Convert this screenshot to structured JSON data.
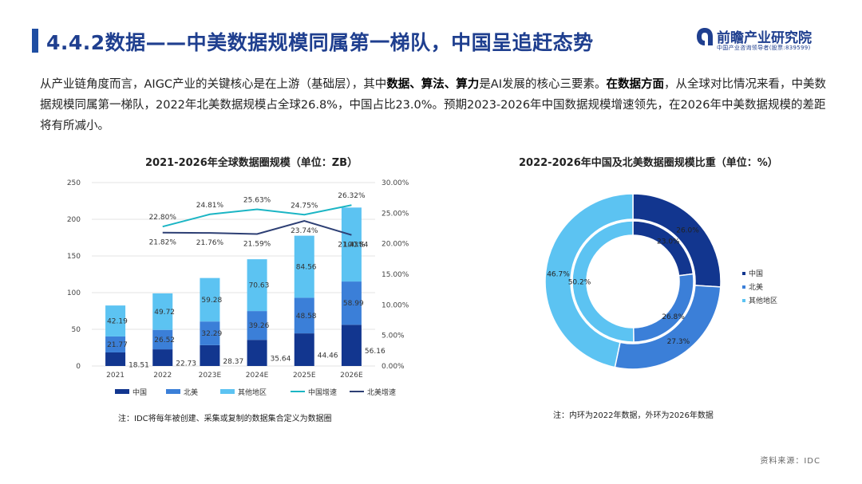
{
  "header": {
    "title": "4.4.2数据——中美数据规模同属第一梯队，中国呈追赶态势",
    "logo_name": "前瞻产业研究院",
    "logo_sub": "中国产业咨询领导者(股票:839599)"
  },
  "intro": {
    "p1": "从产业链角度而言，AIGC产业的关键核心是在上游（基础层），其中",
    "b1": "数据、算法、算力",
    "p2": "是AI发展的核心三要素。",
    "b2": "在数据方面",
    "p3": "，从全球对比情况来看，中美数据规模同属第一梯队，2022年北美数据规模占全球26.8%，中国占比23.0%。预期2023-2026年中国数据规模增速领先，在2026年中美数据规模的差距将有所减小。"
  },
  "colors": {
    "accent": "#1f4ea3",
    "china": "#12368f",
    "na": "#3b7fd8",
    "other": "#5cc3f2",
    "china_growth": "#1bb5c4",
    "na_growth": "#2d3f74"
  },
  "chart_data": [
    {
      "type": "bar",
      "title": "2021-2026年全球数据圈规模（单位：ZB）",
      "categories": [
        "2021",
        "2022",
        "2023E",
        "2024E",
        "2025E",
        "2026E"
      ],
      "series": [
        {
          "name": "中国",
          "values": [
            18.51,
            22.73,
            28.37,
            35.64,
            44.46,
            56.16
          ]
        },
        {
          "name": "北美",
          "values": [
            21.77,
            26.52,
            32.29,
            39.26,
            48.58,
            58.99
          ]
        },
        {
          "name": "其他地区",
          "values": [
            42.19,
            49.72,
            59.28,
            70.63,
            84.56,
            100.84
          ]
        },
        {
          "name": "中国增速",
          "axis": "right",
          "values": [
            null,
            22.8,
            24.81,
            25.63,
            24.75,
            26.32
          ]
        },
        {
          "name": "北美增速",
          "axis": "right",
          "values": [
            null,
            21.82,
            21.76,
            21.59,
            23.74,
            21.43
          ]
        }
      ],
      "labels": {
        "china": [
          "18.51",
          "22.73",
          "28.37",
          "35.64",
          "44.46",
          "56.16"
        ],
        "na": [
          "21.77",
          "26.52",
          "32.29",
          "39.26",
          "48.58",
          "58.99"
        ],
        "other": [
          "42.19",
          "49.72",
          "59.28",
          "70.63",
          "84.56",
          "100.84"
        ],
        "china_growth": [
          "",
          "22.80%",
          "24.81%",
          "25.63%",
          "24.75%",
          "26.32%"
        ],
        "na_growth": [
          "",
          "21.82%",
          "21.76%",
          "21.59%",
          "23.74%",
          "21.43%"
        ]
      },
      "ylim": [
        0,
        250
      ],
      "yticks": [
        "0",
        "50",
        "100",
        "150",
        "200",
        "250"
      ],
      "y2lim": [
        0,
        30
      ],
      "y2ticks": [
        "0.00%",
        "5.00%",
        "10.00%",
        "15.00%",
        "20.00%",
        "25.00%",
        "30.00%"
      ],
      "legend": [
        "中国",
        "北美",
        "其他地区",
        "中国增速",
        "北美增速"
      ],
      "legend_position": "bottom",
      "note": "注：IDC将每年被创建、采集或复制的数据集合定义为数据圈"
    },
    {
      "type": "pie",
      "title": "2022-2026年中国及北美数据圈规模比重（单位：%）",
      "categories": [
        "中国",
        "北美",
        "其他地区"
      ],
      "series": [
        {
          "name": "2022",
          "ring": "inner",
          "values": [
            23.0,
            26.8,
            50.2
          ]
        },
        {
          "name": "2026",
          "ring": "outer",
          "values": [
            26.0,
            27.3,
            46.7
          ]
        }
      ],
      "labels": {
        "inner": [
          "23.0%",
          "26.8%",
          "50.2%"
        ],
        "outer": [
          "26.0%",
          "27.3%",
          "46.7%"
        ]
      },
      "legend": [
        "中国",
        "北美",
        "其他地区"
      ],
      "legend_position": "right",
      "note": "注：内环为2022年数据，外环为2026年数据"
    }
  ],
  "source": "资料来源：IDC"
}
